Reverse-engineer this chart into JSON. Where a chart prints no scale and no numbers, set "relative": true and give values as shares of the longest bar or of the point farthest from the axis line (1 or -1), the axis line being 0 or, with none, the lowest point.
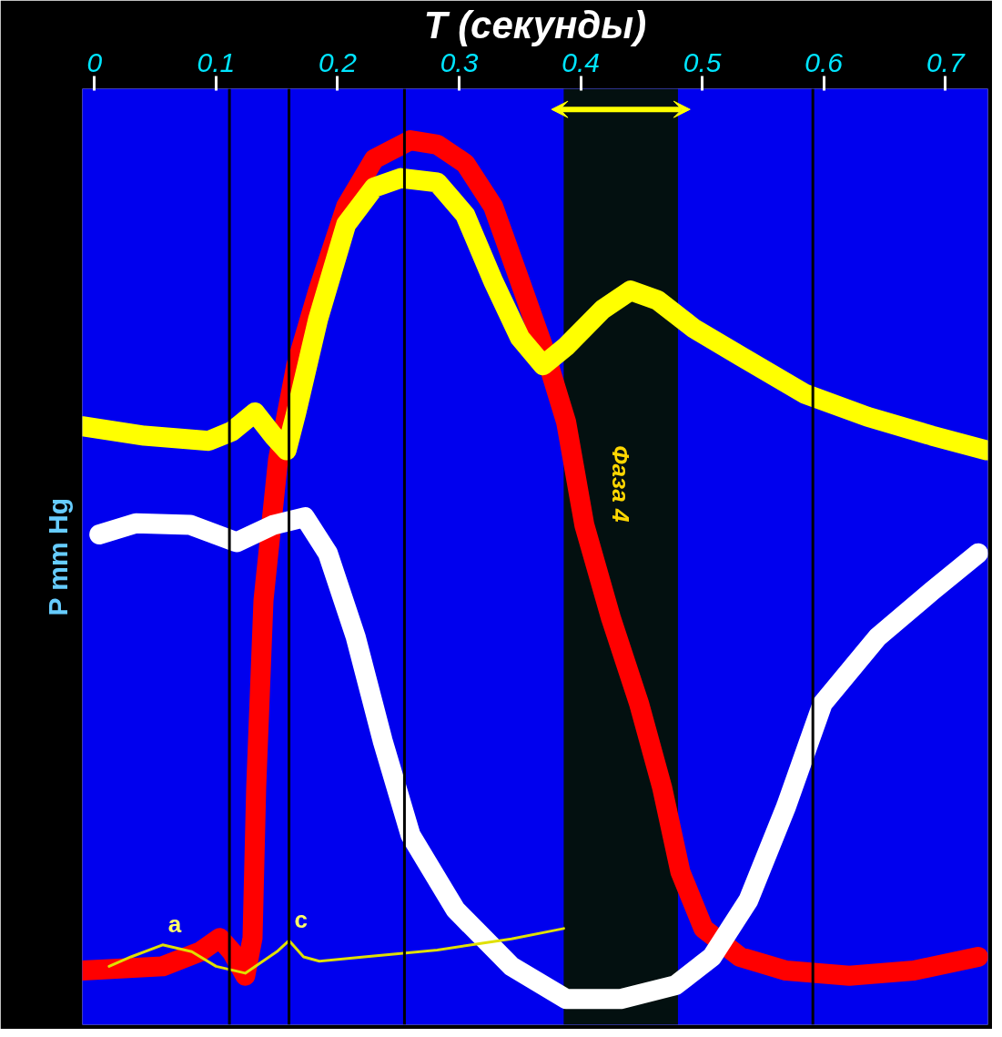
{
  "chart_data": {
    "type": "line",
    "relative": true,
    "xlabel": "T (секунды)",
    "ylabel": "P mm Hg",
    "xlim": [
      -0.01,
      0.735
    ],
    "xticks": [
      0,
      0.1,
      0.2,
      0.3,
      0.4,
      0.5,
      0.6,
      0.7
    ],
    "grid": false,
    "marker": "none",
    "line_style": "solid",
    "series": [
      {
        "color": "#ff0000",
        "x": [
          -0.01,
          0.056,
          0.087,
          0.103,
          0.113,
          0.124,
          0.13,
          0.133,
          0.139,
          0.151,
          0.166,
          0.184,
          0.207,
          0.23,
          0.26,
          0.282,
          0.305,
          0.328,
          0.35,
          0.369,
          0.388,
          0.403,
          0.425,
          0.448,
          0.467,
          0.482,
          0.501,
          0.531,
          0.569,
          0.621,
          0.674,
          0.727
        ],
        "values": [
          0.033,
          0.038,
          0.055,
          0.071,
          0.055,
          0.027,
          0.071,
          0.246,
          0.464,
          0.628,
          0.738,
          0.825,
          0.923,
          0.978,
          1.0,
          0.995,
          0.973,
          0.923,
          0.836,
          0.76,
          0.672,
          0.552,
          0.443,
          0.344,
          0.246,
          0.148,
          0.082,
          0.049,
          0.033,
          0.027,
          0.033,
          0.049
        ]
      },
      {
        "color": "#ffff00",
        "x": [
          -0.01,
          0.041,
          0.094,
          0.113,
          0.132,
          0.147,
          0.158,
          0.166,
          0.184,
          0.207,
          0.23,
          0.252,
          0.282,
          0.305,
          0.328,
          0.35,
          0.369,
          0.388,
          0.418,
          0.441,
          0.463,
          0.493,
          0.531,
          0.584,
          0.636,
          0.689,
          0.734
        ],
        "values": [
          0.667,
          0.656,
          0.65,
          0.661,
          0.683,
          0.656,
          0.639,
          0.683,
          0.792,
          0.902,
          0.945,
          0.956,
          0.951,
          0.913,
          0.836,
          0.77,
          0.738,
          0.76,
          0.803,
          0.825,
          0.814,
          0.781,
          0.749,
          0.705,
          0.678,
          0.656,
          0.639
        ]
      },
      {
        "color": "#ffffff",
        "x": [
          0.004,
          0.034,
          0.079,
          0.117,
          0.147,
          0.173,
          0.192,
          0.215,
          0.237,
          0.26,
          0.297,
          0.343,
          0.388,
          0.433,
          0.478,
          0.508,
          0.538,
          0.569,
          0.599,
          0.644,
          0.689,
          0.727
        ],
        "values": [
          0.541,
          0.554,
          0.552,
          0.532,
          0.552,
          0.561,
          0.519,
          0.421,
          0.301,
          0.191,
          0.104,
          0.038,
          0.0,
          0.0,
          0.016,
          0.049,
          0.115,
          0.224,
          0.344,
          0.421,
          0.475,
          0.519
        ]
      },
      {
        "color": "#e0e000",
        "x": [
          0.012,
          0.03,
          0.056,
          0.08,
          0.1,
          0.124,
          0.15,
          0.16,
          0.172,
          0.185,
          0.222,
          0.282,
          0.343,
          0.386
        ],
        "values": [
          0.038,
          0.049,
          0.063,
          0.055,
          0.038,
          0.03,
          0.055,
          0.068,
          0.049,
          0.044,
          0.049,
          0.057,
          0.07,
          0.082
        ]
      }
    ],
    "ref_lines": [
      {
        "axis": "x",
        "value": 0.111,
        "color": "#000000"
      },
      {
        "axis": "x",
        "value": 0.16,
        "color": "#000000"
      },
      {
        "axis": "x",
        "value": 0.255,
        "color": "#000000"
      },
      {
        "axis": "x",
        "value": 0.591,
        "color": "#000000"
      }
    ],
    "bands": [
      {
        "axis": "x",
        "from": 0.386,
        "to": 0.48,
        "label": "Фаза 4",
        "color": "#031010"
      }
    ],
    "annotations": [
      {
        "text": "a",
        "x": 0.056,
        "y": 0.063
      },
      {
        "text": "c",
        "x": 0.16,
        "y": 0.068
      }
    ],
    "tick_labels": "x"
  }
}
